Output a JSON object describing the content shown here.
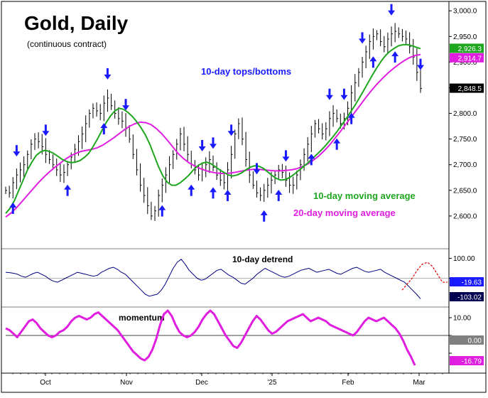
{
  "chart_data": [
    {
      "type": "line",
      "title": "Gold, Daily",
      "subtitle": "(continuous contract)",
      "x_ticks": [
        "Oct",
        "Nov",
        "Dec",
        "'25",
        "Feb",
        "Mar"
      ],
      "ylim": [
        2550,
        3010
      ],
      "yticks": [
        2600,
        2650,
        2700,
        2750,
        2800,
        2850,
        2900,
        2950,
        3000
      ],
      "ytick_labels": [
        "2,600.0",
        "2,650.0",
        "2,700.0",
        "2,750.0",
        "2,800.0",
        "2,850.0",
        "2,900.0",
        "2,950.0",
        "3,000.0"
      ],
      "annotations": {
        "tops_bottoms": "10-day tops/bottoms",
        "ma10": "10-day moving average",
        "ma20": "20-day moving average"
      },
      "value_badges": [
        {
          "label": "2,926.3",
          "value": 2926.3,
          "color": "#1fa61f",
          "text_color": "#ffffff"
        },
        {
          "label": "2,914.7",
          "value": 2914.7,
          "color": "#e01ee0",
          "text_color": "#ffffff"
        },
        {
          "label": "2,848.5",
          "value": 2848.5,
          "color": "#000000",
          "text_color": "#ffffff"
        }
      ],
      "colors": {
        "price": "#000000",
        "ma10": "#1fa61f",
        "ma20": "#e01ee0",
        "arrows": "#1a1aff"
      },
      "price": [
        2650,
        2645,
        2665,
        2680,
        2690,
        2700,
        2720,
        2740,
        2750,
        2745,
        2735,
        2720,
        2710,
        2700,
        2690,
        2680,
        2685,
        2700,
        2715,
        2730,
        2745,
        2760,
        2780,
        2800,
        2810,
        2805,
        2800,
        2820,
        2830,
        2815,
        2800,
        2790,
        2785,
        2770,
        2750,
        2720,
        2690,
        2660,
        2640,
        2620,
        2600,
        2610,
        2640,
        2660,
        2680,
        2700,
        2720,
        2740,
        2760,
        2740,
        2720,
        2700,
        2690,
        2680,
        2690,
        2700,
        2710,
        2695,
        2680,
        2670,
        2665,
        2690,
        2720,
        2760,
        2780,
        2750,
        2710,
        2680,
        2660,
        2645,
        2640,
        2650,
        2660,
        2670,
        2680,
        2690,
        2685,
        2670,
        2660,
        2660,
        2680,
        2700,
        2720,
        2740,
        2760,
        2780,
        2770,
        2760,
        2770,
        2790,
        2800,
        2790,
        2780,
        2790,
        2810,
        2840,
        2860,
        2880,
        2900,
        2920,
        2940,
        2950,
        2955,
        2940,
        2930,
        2945,
        2955,
        2960,
        2955,
        2950,
        2945,
        2930,
        2910,
        2880,
        2848.5
      ],
      "ma10": [
        2605,
        2615,
        2630,
        2650,
        2670,
        2690,
        2705,
        2718,
        2725,
        2728,
        2726,
        2722,
        2716,
        2710,
        2706,
        2704,
        2705,
        2708,
        2714,
        2722,
        2735,
        2750,
        2766,
        2782,
        2795,
        2805,
        2810,
        2808,
        2802,
        2794,
        2784,
        2772,
        2758,
        2740,
        2718,
        2696,
        2678,
        2666,
        2660,
        2660,
        2665,
        2672,
        2680,
        2690,
        2698,
        2703,
        2705,
        2702,
        2696,
        2690,
        2685,
        2680,
        2678,
        2680,
        2684,
        2690,
        2695,
        2698,
        2697,
        2693,
        2686,
        2679,
        2673,
        2670,
        2671,
        2675,
        2681,
        2688,
        2695,
        2702,
        2710,
        2718,
        2726,
        2735,
        2745,
        2755,
        2766,
        2778,
        2790,
        2803,
        2816,
        2830,
        2845,
        2860,
        2875,
        2889,
        2902,
        2913,
        2921,
        2927,
        2932,
        2934,
        2934,
        2932,
        2929,
        2926.3
      ],
      "ma20": [
        2598,
        2606,
        2616,
        2628,
        2640,
        2652,
        2664,
        2675,
        2685,
        2694,
        2702,
        2710,
        2717,
        2722,
        2726,
        2728,
        2730,
        2733,
        2738,
        2745,
        2752,
        2760,
        2768,
        2775,
        2780,
        2783,
        2782,
        2778,
        2770,
        2760,
        2748,
        2735,
        2722,
        2712,
        2704,
        2698,
        2693,
        2689,
        2686,
        2684,
        2683,
        2683,
        2684,
        2686,
        2688,
        2690,
        2691,
        2691,
        2690,
        2689,
        2688,
        2688,
        2689,
        2690,
        2692,
        2696,
        2701,
        2708,
        2716,
        2726,
        2737,
        2750,
        2763,
        2777,
        2791,
        2805,
        2819,
        2833,
        2846,
        2858,
        2869,
        2879,
        2888,
        2896,
        2903,
        2909,
        2913,
        2914.7
      ],
      "arrows_down_index": [
        3,
        11,
        28,
        33,
        54,
        57,
        62,
        69,
        77,
        89,
        93,
        98,
        106,
        114
      ],
      "arrows_up_index": [
        2,
        17,
        27,
        43,
        51,
        57,
        61,
        71,
        75,
        84,
        91,
        95,
        101,
        107
      ]
    },
    {
      "type": "line",
      "title": "10-day detrend",
      "ylim": [
        -130,
        130
      ],
      "yticks": [
        100,
        0
      ],
      "ytick_labels": [
        "100.00",
        ""
      ],
      "value_badges": [
        {
          "label": "-19.63",
          "value": -19.63,
          "color": "#1a1aff",
          "text_color": "#ffffff"
        },
        {
          "label": "-103.02",
          "value": -103.02,
          "color": "#000050",
          "text_color": "#ffffff"
        }
      ],
      "colors": {
        "line": "#000080",
        "projection": "#e00000"
      },
      "values": [
        30,
        28,
        25,
        20,
        10,
        5,
        15,
        25,
        30,
        20,
        10,
        -5,
        -15,
        -20,
        -10,
        0,
        10,
        20,
        30,
        25,
        20,
        15,
        10,
        15,
        30,
        40,
        50,
        55,
        45,
        30,
        20,
        0,
        -20,
        -40,
        -60,
        -80,
        -90,
        -85,
        -80,
        -60,
        -30,
        10,
        50,
        80,
        95,
        70,
        40,
        20,
        0,
        -10,
        -5,
        10,
        25,
        40,
        45,
        30,
        15,
        5,
        -10,
        -25,
        -30,
        -15,
        0,
        20,
        35,
        50,
        40,
        30,
        20,
        10,
        5,
        10,
        20,
        30,
        40,
        45,
        50,
        40,
        30,
        35,
        40,
        45,
        35,
        25,
        20,
        30,
        40,
        50,
        55,
        45,
        35,
        30,
        35,
        40,
        45,
        30,
        20,
        10,
        0,
        -10,
        -20,
        -40,
        -60,
        -80,
        -103.02
      ],
      "projection": [
        -60,
        -30,
        0,
        40,
        70,
        80,
        60,
        20,
        -20,
        -19.63
      ]
    },
    {
      "type": "line",
      "title": "momentum",
      "ylim": [
        -20,
        14
      ],
      "yticks": [
        10,
        0,
        -10
      ],
      "ytick_labels": [
        "10.00",
        "",
        ""
      ],
      "value_badges": [
        {
          "label": "0.00",
          "value": 0,
          "color": "#808080",
          "text_color": "#ffffff"
        },
        {
          "label": "-16.79",
          "value": -16.79,
          "color": "#e01ee0",
          "text_color": "#ffffff"
        }
      ],
      "colors": {
        "line": "#e01ee0",
        "zero": "#000000"
      },
      "values": [
        4,
        3,
        1,
        -1,
        2,
        5,
        8,
        9,
        7,
        4,
        2,
        0,
        -1,
        0,
        2,
        3,
        5,
        8,
        10,
        11,
        10,
        9,
        10,
        12,
        13,
        11,
        9,
        7,
        5,
        3,
        0,
        -3,
        -6,
        -9,
        -11,
        -13,
        -14,
        -12,
        -8,
        -2,
        6,
        12,
        14,
        11,
        6,
        2,
        0,
        -1,
        0,
        2,
        5,
        9,
        12,
        14,
        12,
        8,
        4,
        0,
        -3,
        -6,
        -7,
        -4,
        0,
        4,
        8,
        11,
        9,
        6,
        3,
        1,
        2,
        4,
        6,
        8,
        9,
        10,
        11,
        12,
        10,
        8,
        9,
        10,
        9,
        8,
        6,
        5,
        4,
        3,
        2,
        1,
        0,
        2,
        5,
        8,
        10,
        9,
        8,
        9,
        10,
        8,
        6,
        4,
        1,
        -3,
        -8,
        -12,
        -16.79
      ]
    }
  ]
}
